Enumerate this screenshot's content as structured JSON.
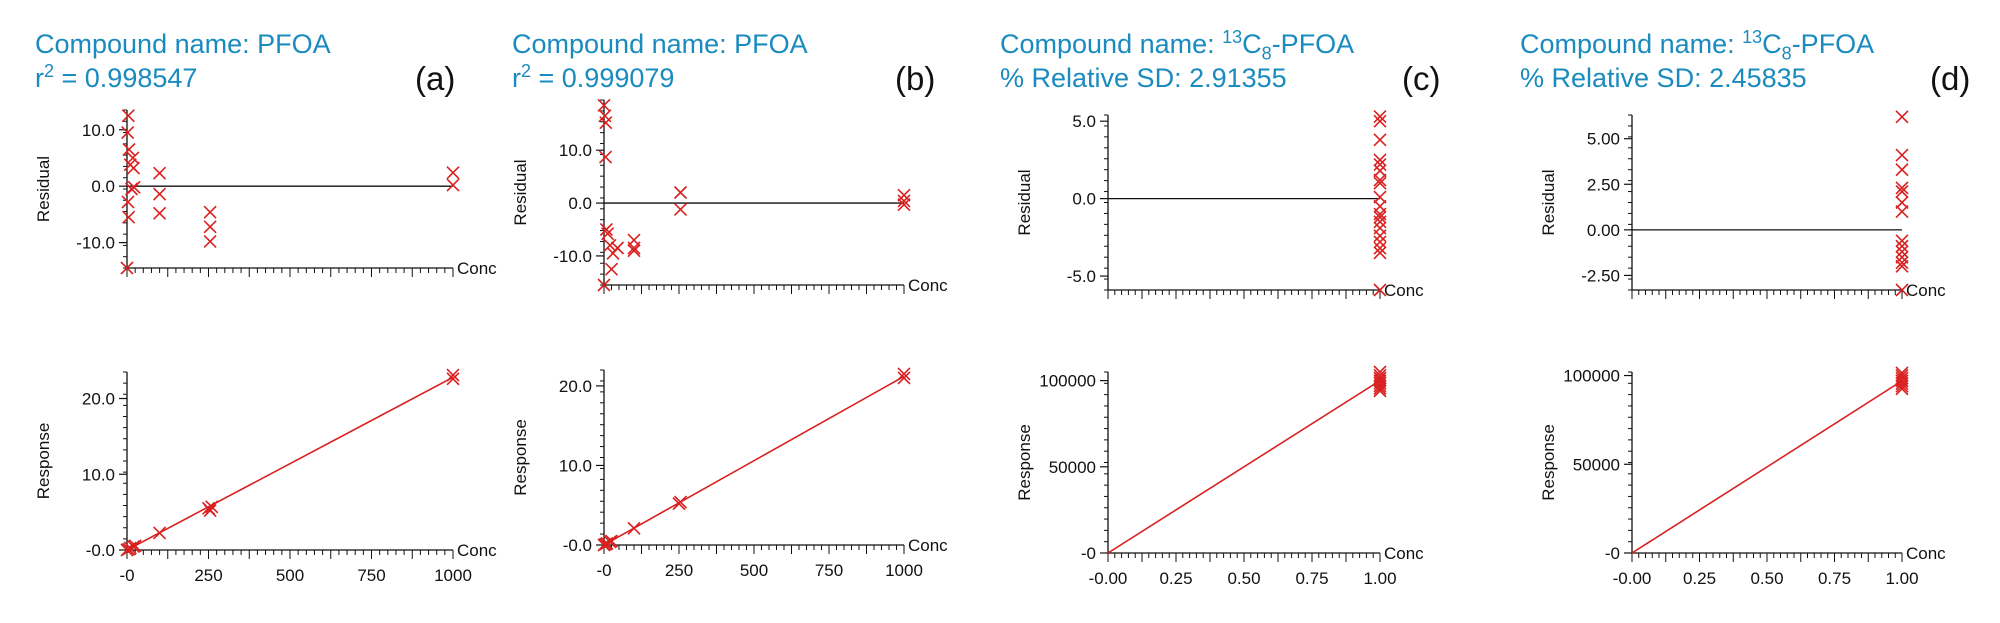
{
  "colors": {
    "header": "#1a8bbf",
    "marker": "#d92020",
    "axis": "#111111"
  },
  "chart_data": [
    {
      "panel_label": "(a)",
      "header": {
        "name_prefix": "Compound name: ",
        "name_super": "",
        "name_main": "PFOA",
        "name_sub": "",
        "name_suffix": "",
        "stat_prefix": "r",
        "stat_super": "2",
        "stat_text": " = 0.998547"
      },
      "residual": {
        "type": "scatter",
        "ylabel": "Residual",
        "xlabel": "Conc",
        "xlim": [
          0,
          1000
        ],
        "ylim": [
          -14.5,
          13.5
        ],
        "y_ticks": [
          10,
          0,
          -10
        ],
        "y_tick_labels": [
          "10.0",
          "0.0",
          "-10.0"
        ],
        "baseline": 0,
        "points": [
          [
            0,
            -14.5
          ],
          [
            4,
            12.5
          ],
          [
            2,
            9.5
          ],
          [
            6,
            6.5
          ],
          [
            10,
            3.8
          ],
          [
            18,
            5.0
          ],
          [
            20,
            3.2
          ],
          [
            3,
            -2.8
          ],
          [
            5,
            -5.5
          ],
          [
            14,
            -0.5
          ],
          [
            22,
            -0.2
          ],
          [
            100,
            2.3
          ],
          [
            100,
            -1.4
          ],
          [
            100,
            -4.8
          ],
          [
            255,
            -4.6
          ],
          [
            255,
            -7.2
          ],
          [
            255,
            -9.8
          ],
          [
            1000,
            2.4
          ],
          [
            1000,
            0.2
          ]
        ]
      },
      "response": {
        "type": "scatter",
        "ylabel": "Response",
        "xlabel": "Conc",
        "xlim": [
          0,
          1000
        ],
        "ylim": [
          0,
          23.5
        ],
        "x_ticks": [
          0,
          250,
          500,
          750,
          1000
        ],
        "x_tick_labels": [
          "-0",
          "250",
          "500",
          "750",
          "1000"
        ],
        "y_ticks": [
          20,
          10,
          0
        ],
        "y_tick_labels": [
          "20.0",
          "10.0",
          "-0.0"
        ],
        "fit_line": [
          [
            0,
            0
          ],
          [
            1000,
            22.8
          ]
        ],
        "points": [
          [
            0,
            0
          ],
          [
            5,
            0.1
          ],
          [
            10,
            0.25
          ],
          [
            20,
            0.45
          ],
          [
            25,
            0.55
          ],
          [
            100,
            2.25
          ],
          [
            250,
            5.5
          ],
          [
            255,
            5.2
          ],
          [
            260,
            5.7
          ],
          [
            1000,
            23.1
          ],
          [
            1000,
            22.6
          ]
        ]
      }
    },
    {
      "panel_label": "(b)",
      "header": {
        "name_prefix": "Compound name: ",
        "name_super": "",
        "name_main": "PFOA",
        "name_sub": "",
        "name_suffix": "",
        "stat_prefix": "r",
        "stat_super": "2",
        "stat_text": " = 0.999079"
      },
      "residual": {
        "type": "scatter",
        "ylabel": "Residual",
        "xlabel": "Conc",
        "xlim": [
          0,
          1000
        ],
        "ylim": [
          -15.5,
          19.5
        ],
        "y_ticks": [
          10,
          0,
          -10
        ],
        "y_tick_labels": [
          "10.0",
          "0.0",
          "-10.0"
        ],
        "baseline": 0,
        "points": [
          [
            0,
            18.5
          ],
          [
            3,
            16.5
          ],
          [
            6,
            15.2
          ],
          [
            5,
            8.7
          ],
          [
            0,
            -15.5
          ],
          [
            8,
            -5.0
          ],
          [
            12,
            -5.8
          ],
          [
            20,
            -8.0
          ],
          [
            30,
            -9.5
          ],
          [
            25,
            -12.5
          ],
          [
            45,
            -8.5
          ],
          [
            100,
            -7.0
          ],
          [
            100,
            -8.5
          ],
          [
            100,
            -9.0
          ],
          [
            255,
            2.0
          ],
          [
            255,
            -1.2
          ],
          [
            1000,
            1.5
          ],
          [
            1000,
            0.4
          ],
          [
            1000,
            -0.3
          ]
        ]
      },
      "response": {
        "type": "scatter",
        "ylabel": "Response",
        "xlabel": "Conc",
        "xlim": [
          0,
          1000
        ],
        "ylim": [
          0,
          22
        ],
        "x_ticks": [
          0,
          250,
          500,
          750,
          1000
        ],
        "x_tick_labels": [
          "-0",
          "250",
          "500",
          "750",
          "1000"
        ],
        "y_ticks": [
          20,
          10,
          0
        ],
        "y_tick_labels": [
          "20.0",
          "10.0",
          "-0.0"
        ],
        "fit_line": [
          [
            0,
            0
          ],
          [
            1000,
            21.2
          ]
        ],
        "points": [
          [
            0,
            0
          ],
          [
            5,
            0.1
          ],
          [
            10,
            0.2
          ],
          [
            20,
            0.4
          ],
          [
            25,
            0.5
          ],
          [
            100,
            2.1
          ],
          [
            250,
            5.2
          ],
          [
            255,
            5.4
          ],
          [
            1000,
            21.5
          ],
          [
            1000,
            21.0
          ]
        ]
      }
    },
    {
      "panel_label": "(c)",
      "header": {
        "name_prefix": "Compound name: ",
        "name_super": "13",
        "name_main": "C",
        "name_sub": "8",
        "name_suffix": "-PFOA",
        "stat_prefix": "% Relative SD: 2.91355",
        "stat_super": "",
        "stat_text": ""
      },
      "residual": {
        "type": "scatter",
        "ylabel": "Residual",
        "xlabel": "Conc",
        "xlim": [
          0,
          1
        ],
        "ylim": [
          -5.9,
          5.4
        ],
        "y_ticks": [
          5,
          0,
          -5
        ],
        "y_tick_labels": [
          "5.0",
          "0.0",
          "-5.0"
        ],
        "baseline": 0,
        "points": [
          [
            1,
            5.3
          ],
          [
            1,
            5.0
          ],
          [
            1,
            3.8
          ],
          [
            1,
            2.5
          ],
          [
            1,
            2.2
          ],
          [
            1,
            1.8
          ],
          [
            1,
            1.2
          ],
          [
            1,
            1.0
          ],
          [
            1,
            0.1
          ],
          [
            1,
            -0.5
          ],
          [
            1,
            -1.0
          ],
          [
            1,
            -1.2
          ],
          [
            1,
            -1.5
          ],
          [
            1,
            -1.9
          ],
          [
            1,
            -2.4
          ],
          [
            1,
            -2.8
          ],
          [
            1,
            -3.2
          ],
          [
            1,
            -3.5
          ],
          [
            1,
            -5.9
          ]
        ]
      },
      "response": {
        "type": "scatter",
        "ylabel": "Response",
        "xlabel": "Conc",
        "xlim": [
          0,
          1
        ],
        "ylim": [
          0,
          105000
        ],
        "x_ticks": [
          0,
          0.25,
          0.5,
          0.75,
          1
        ],
        "x_tick_labels": [
          "-0.00",
          "0.25",
          "0.50",
          "0.75",
          "1.00"
        ],
        "y_ticks": [
          100000,
          50000,
          0
        ],
        "y_tick_labels": [
          "100000",
          "50000",
          "-0"
        ],
        "fit_line": [
          [
            0,
            0
          ],
          [
            1,
            100000
          ]
        ],
        "points": [
          [
            1,
            105000
          ],
          [
            1,
            103000
          ],
          [
            1,
            101500
          ],
          [
            1,
            100000
          ],
          [
            1,
            98500
          ],
          [
            1,
            97000
          ],
          [
            1,
            95500
          ],
          [
            1,
            94000
          ]
        ]
      }
    },
    {
      "panel_label": "(d)",
      "header": {
        "name_prefix": "Compound name: ",
        "name_super": "13",
        "name_main": "C",
        "name_sub": "8",
        "name_suffix": "-PFOA",
        "stat_prefix": "% Relative SD: 2.45835",
        "stat_super": "",
        "stat_text": ""
      },
      "residual": {
        "type": "scatter",
        "ylabel": "Residual",
        "xlabel": "Conc",
        "xlim": [
          0,
          1
        ],
        "ylim": [
          -3.3,
          6.3
        ],
        "y_ticks": [
          5,
          2.5,
          0,
          -2.5
        ],
        "y_tick_labels": [
          "5.00",
          "2.50",
          "0.00",
          "-2.50"
        ],
        "baseline": 0,
        "points": [
          [
            1,
            6.2
          ],
          [
            1,
            4.1
          ],
          [
            1,
            3.3
          ],
          [
            1,
            2.3
          ],
          [
            1,
            2.1
          ],
          [
            1,
            1.5
          ],
          [
            1,
            1.0
          ],
          [
            1,
            -0.6
          ],
          [
            1,
            -0.9
          ],
          [
            1,
            -1.2
          ],
          [
            1,
            -1.5
          ],
          [
            1,
            -1.8
          ],
          [
            1,
            -2.0
          ],
          [
            1,
            -3.3
          ]
        ]
      },
      "response": {
        "type": "scatter",
        "ylabel": "Response",
        "xlabel": "Conc",
        "xlim": [
          0,
          1
        ],
        "ylim": [
          0,
          102000
        ],
        "x_ticks": [
          0,
          0.25,
          0.5,
          0.75,
          1
        ],
        "x_tick_labels": [
          "-0.00",
          "0.25",
          "0.50",
          "0.75",
          "1.00"
        ],
        "y_ticks": [
          100000,
          50000,
          0
        ],
        "y_tick_labels": [
          "100000",
          "50000",
          "-0"
        ],
        "fit_line": [
          [
            0,
            0
          ],
          [
            1,
            97000
          ]
        ],
        "points": [
          [
            1,
            101500
          ],
          [
            1,
            100000
          ],
          [
            1,
            98500
          ],
          [
            1,
            97000
          ],
          [
            1,
            95500
          ],
          [
            1,
            94000
          ],
          [
            1,
            92500
          ]
        ]
      }
    }
  ]
}
